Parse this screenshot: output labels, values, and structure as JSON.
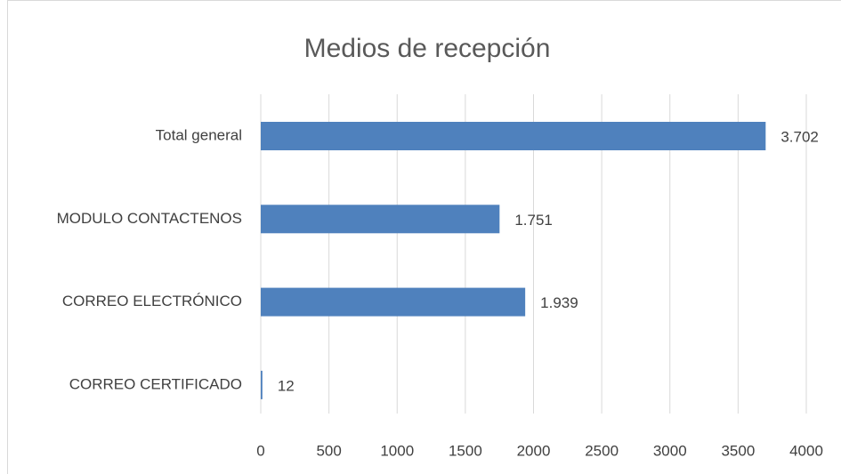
{
  "chart_data": {
    "type": "bar",
    "orientation": "horizontal",
    "title": "Medios de recepción",
    "categories": [
      "Total general",
      "MODULO CONTACTENOS",
      "CORREO ELECTRÓNICO",
      "CORREO CERTIFICADO"
    ],
    "values": [
      3702,
      1751,
      1939,
      12
    ],
    "value_labels": [
      "3.702",
      "1.751",
      "1.939",
      "12"
    ],
    "color": "#4f81bd",
    "xlim": [
      0,
      4000
    ],
    "xticks": [
      0,
      500,
      1000,
      1500,
      2000,
      2500,
      3000,
      3500,
      4000
    ],
    "grid": true
  }
}
